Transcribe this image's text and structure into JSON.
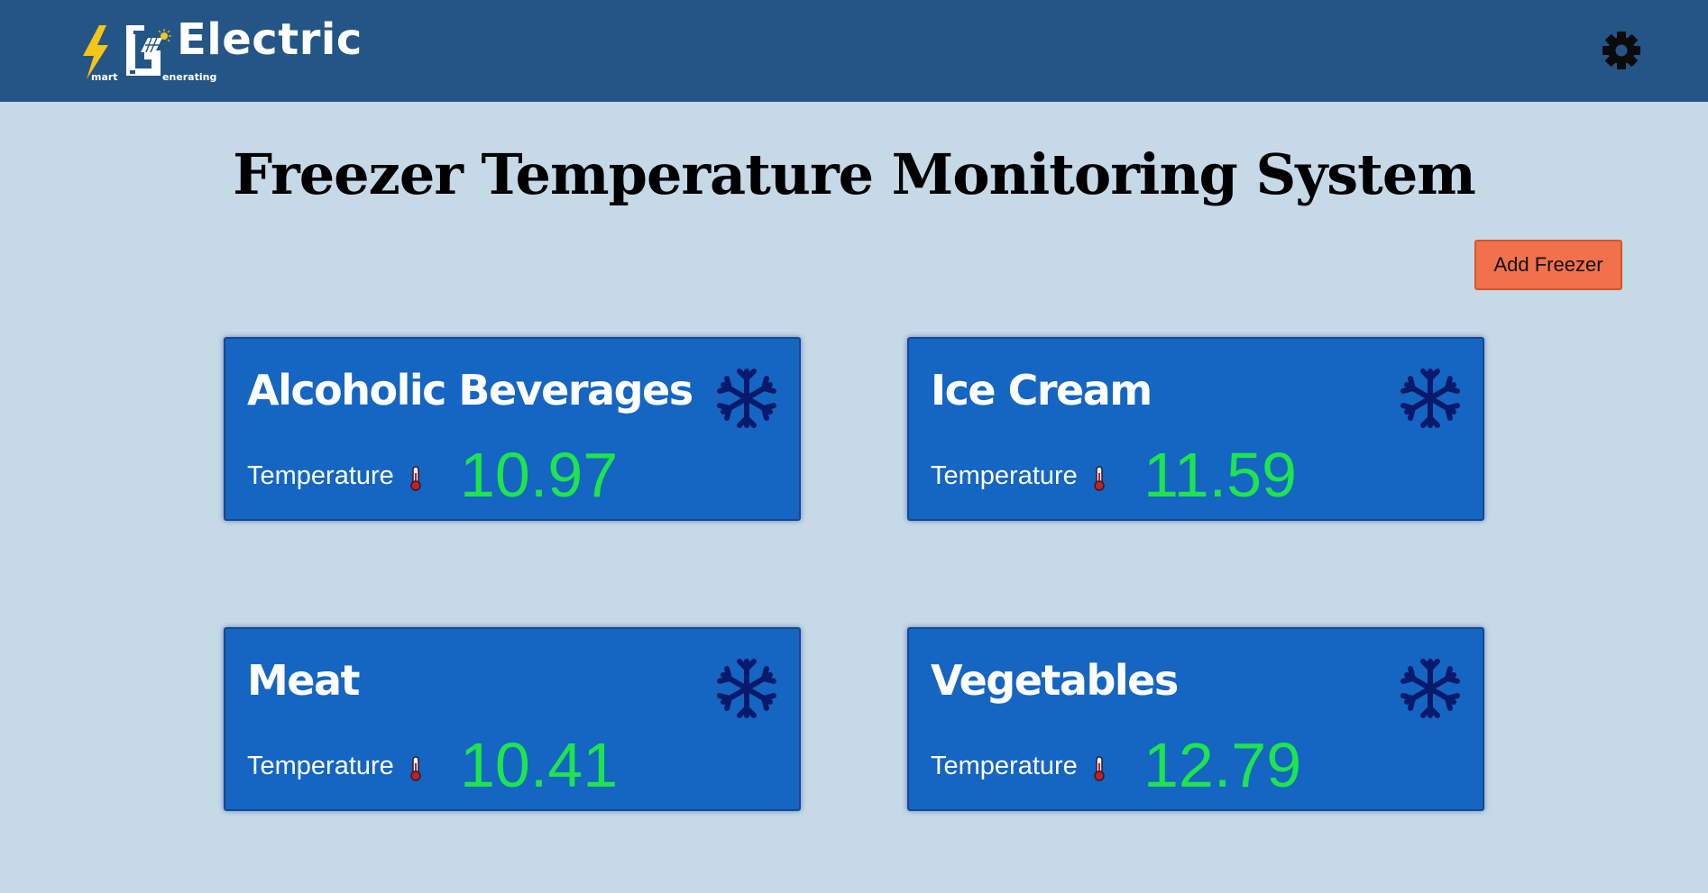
{
  "header": {
    "logo": {
      "word": "Electric",
      "s_caption": "mart",
      "g_caption": "enerating"
    },
    "settings_icon": "gear-icon"
  },
  "main": {
    "title": "Freezer Temperature Monitoring System",
    "add_button_label": "Add Freezer",
    "freezers": [
      {
        "name": "Alcoholic Beverages",
        "temperature_label": "Temperature",
        "temperature": "10.97",
        "icon": "snowflake-icon"
      },
      {
        "name": "Ice Cream",
        "temperature_label": "Temperature",
        "temperature": "11.59",
        "icon": "snowflake-icon"
      },
      {
        "name": "Meat",
        "temperature_label": "Temperature",
        "temperature": "10.41",
        "icon": "snowflake-icon"
      },
      {
        "name": "Vegetables",
        "temperature_label": "Temperature",
        "temperature": "12.79",
        "icon": "snowflake-icon"
      }
    ]
  },
  "colors": {
    "header_bg": "#235687",
    "page_bg": "#c6d9e7",
    "card_bg": "#1565c3",
    "temperature_value": "#1ee44e",
    "snowflake": "#0a1a6b",
    "add_button": "#f0714c",
    "logo_bolt": "#f5c518"
  }
}
